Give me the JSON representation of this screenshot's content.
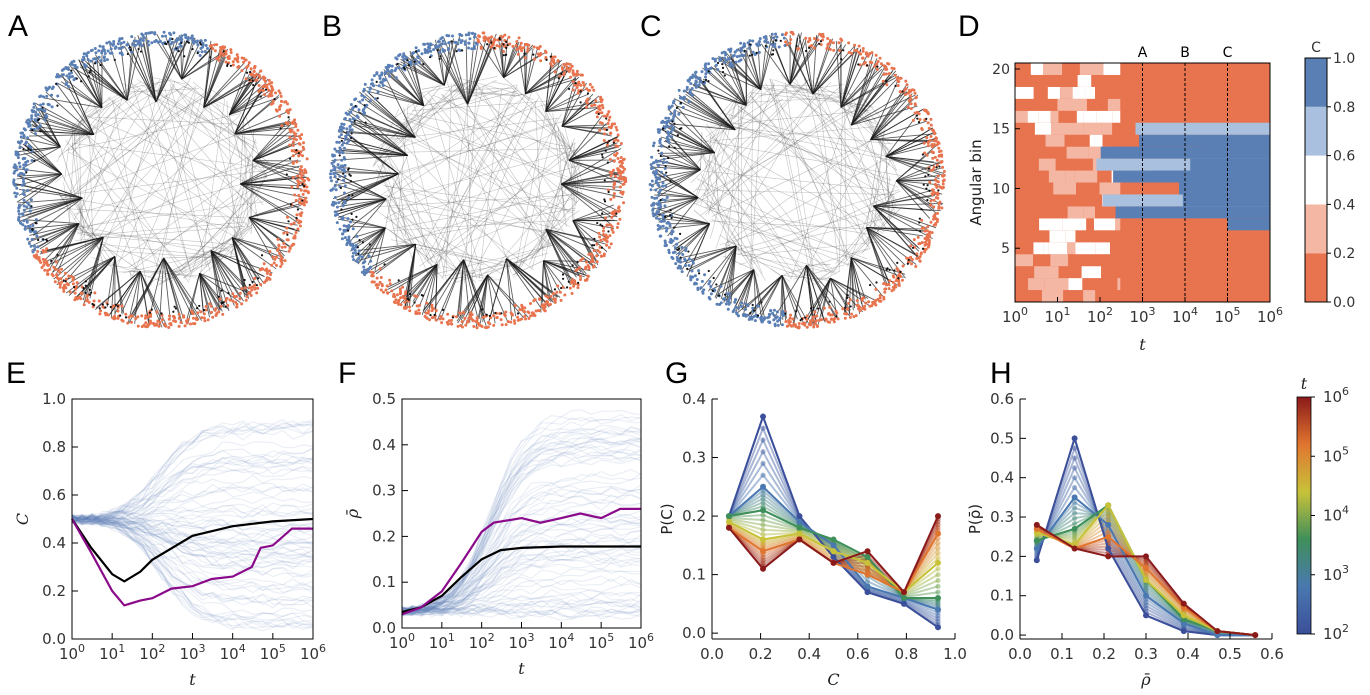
{
  "panel_labels": [
    "A",
    "B",
    "C",
    "D",
    "E",
    "F",
    "G",
    "H"
  ],
  "colors": {
    "orange": "#e8744f",
    "light_orange": "#f4b7a4",
    "blue": "#5a7fb5",
    "light_blue": "#a9c0de",
    "white": "#ffffff",
    "purple": "#8a0a8a",
    "black": "#000000",
    "edge": "#555555"
  },
  "networks": [
    {
      "label": "A",
      "blue_arc_deg": [
        150,
        290
      ]
    },
    {
      "label": "B",
      "blue_arc_deg": [
        140,
        270
      ]
    },
    {
      "label": "C",
      "blue_arc_deg": [
        95,
        265
      ]
    }
  ],
  "chart_data": [
    {
      "panel": "D",
      "type": "heatmap",
      "xlabel": "t",
      "ylabel": "Angular bin",
      "x_scale": "log",
      "x_ticks": [
        "10^0",
        "10^1",
        "10^2",
        "10^3",
        "10^4",
        "10^5",
        "10^6"
      ],
      "y_ticks": [
        5,
        10,
        15,
        20
      ],
      "xlim": [
        1,
        1000000
      ],
      "ylim": [
        0.5,
        20.5
      ],
      "markers": [
        {
          "label": "A",
          "t": 1000
        },
        {
          "label": "B",
          "t": 10000
        },
        {
          "label": "C",
          "t": 100000
        }
      ],
      "colorbar": {
        "label": "C",
        "ticks": [
          0.0,
          0.2,
          0.4,
          0.6,
          0.8,
          1.0
        ],
        "levels": [
          "#e8744f",
          "#f4b7a4",
          "#ffffff",
          "#a9c0de",
          "#5a7fb5"
        ]
      },
      "late_state": {
        "blue_bins": [
          8,
          15
        ],
        "orange_bins": [
          1,
          7
        ]
      }
    },
    {
      "panel": "E",
      "type": "line",
      "xlabel": "t",
      "ylabel": "C",
      "x_scale": "log",
      "x_ticks": [
        "10^0",
        "10^1",
        "10^2",
        "10^3",
        "10^4",
        "10^5",
        "10^6"
      ],
      "y_ticks": [
        "0.0",
        "0.2",
        "0.4",
        "0.6",
        "0.8",
        "1.0"
      ],
      "xlim": [
        1,
        1000000
      ],
      "ylim": [
        0,
        1.0
      ],
      "series": [
        {
          "color": "#000000",
          "x": [
            1,
            3,
            10,
            20,
            50,
            100,
            1000,
            10000,
            100000,
            1000000
          ],
          "values": [
            0.5,
            0.38,
            0.27,
            0.24,
            0.28,
            0.33,
            0.43,
            0.47,
            0.49,
            0.5
          ]
        },
        {
          "color": "#8a0a8a",
          "x": [
            1,
            3,
            10,
            20,
            50,
            100,
            300,
            1000,
            3000,
            10000,
            30000,
            50000,
            100000,
            300000,
            1000000
          ],
          "values": [
            0.5,
            0.36,
            0.2,
            0.14,
            0.16,
            0.17,
            0.21,
            0.22,
            0.25,
            0.26,
            0.3,
            0.38,
            0.39,
            0.46,
            0.46
          ]
        }
      ]
    },
    {
      "panel": "F",
      "type": "line",
      "xlabel": "t",
      "ylabel": "ρ̄",
      "x_scale": "log",
      "x_ticks": [
        "10^0",
        "10^1",
        "10^2",
        "10^3",
        "10^4",
        "10^5",
        "10^6"
      ],
      "y_ticks": [
        "0.0",
        "0.1",
        "0.2",
        "0.3",
        "0.4",
        "0.5"
      ],
      "xlim": [
        1,
        1000000
      ],
      "ylim": [
        0,
        0.5
      ],
      "series": [
        {
          "color": "#000000",
          "x": [
            1,
            3,
            10,
            30,
            100,
            300,
            1000,
            10000,
            100000,
            1000000
          ],
          "values": [
            0.035,
            0.045,
            0.07,
            0.11,
            0.15,
            0.17,
            0.175,
            0.178,
            0.178,
            0.178
          ]
        },
        {
          "color": "#8a0a8a",
          "x": [
            1,
            3,
            10,
            30,
            100,
            200,
            1000,
            3000,
            10000,
            30000,
            100000,
            300000,
            1000000
          ],
          "values": [
            0.03,
            0.045,
            0.08,
            0.14,
            0.21,
            0.23,
            0.24,
            0.23,
            0.24,
            0.25,
            0.24,
            0.26,
            0.26
          ]
        }
      ]
    },
    {
      "panel": "G",
      "type": "line",
      "xlabel": "C",
      "ylabel": "P(C)",
      "x_ticks": [
        "0.0",
        "0.2",
        "0.4",
        "0.6",
        "0.8",
        "1.0"
      ],
      "y_ticks": [
        "0.0",
        "0.1",
        "0.2",
        "0.3",
        "0.4"
      ],
      "xlim": [
        0,
        1.0
      ],
      "ylim": [
        -0.01,
        0.4
      ],
      "x": [
        0.07,
        0.21,
        0.36,
        0.5,
        0.64,
        0.79,
        0.93
      ],
      "series": [
        {
          "color": "#3b4f9a",
          "values": [
            0.2,
            0.37,
            0.2,
            0.13,
            0.07,
            0.05,
            0.01
          ]
        },
        {
          "color": "#4a78b0",
          "values": [
            0.2,
            0.25,
            0.19,
            0.15,
            0.08,
            0.06,
            0.04
          ]
        },
        {
          "color": "#3f8f5a",
          "values": [
            0.2,
            0.21,
            0.18,
            0.16,
            0.13,
            0.06,
            0.06
          ]
        },
        {
          "color": "#c8c23a",
          "values": [
            0.19,
            0.16,
            0.17,
            0.14,
            0.12,
            0.07,
            0.12
          ]
        },
        {
          "color": "#e0752f",
          "values": [
            0.18,
            0.14,
            0.16,
            0.12,
            0.1,
            0.07,
            0.17
          ]
        },
        {
          "color": "#8b1a1a",
          "values": [
            0.18,
            0.11,
            0.16,
            0.12,
            0.14,
            0.07,
            0.2
          ]
        }
      ]
    },
    {
      "panel": "H",
      "type": "line",
      "xlabel": "ρ̄",
      "ylabel": "P(ρ̄)",
      "x_ticks": [
        "0.0",
        "0.1",
        "0.2",
        "0.3",
        "0.4",
        "0.5",
        "0.6"
      ],
      "y_ticks": [
        "0.0",
        "0.1",
        "0.2",
        "0.3",
        "0.4",
        "0.5",
        "0.6"
      ],
      "xlim": [
        0,
        0.6
      ],
      "ylim": [
        -0.01,
        0.6
      ],
      "x": [
        0.04,
        0.13,
        0.21,
        0.3,
        0.39,
        0.47,
        0.56
      ],
      "series": [
        {
          "color": "#3b4f9a",
          "values": [
            0.19,
            0.5,
            0.22,
            0.05,
            0.01,
            0.0,
            0.0
          ]
        },
        {
          "color": "#4a78b0",
          "values": [
            0.22,
            0.35,
            0.28,
            0.1,
            0.03,
            0.0,
            0.0
          ]
        },
        {
          "color": "#3f8f5a",
          "values": [
            0.24,
            0.27,
            0.33,
            0.14,
            0.04,
            0.01,
            0.0
          ]
        },
        {
          "color": "#c8c23a",
          "values": [
            0.26,
            0.23,
            0.33,
            0.14,
            0.05,
            0.01,
            0.0
          ]
        },
        {
          "color": "#e0752f",
          "values": [
            0.27,
            0.22,
            0.25,
            0.17,
            0.07,
            0.01,
            0.0
          ]
        },
        {
          "color": "#8b1a1a",
          "values": [
            0.28,
            0.22,
            0.2,
            0.2,
            0.08,
            0.01,
            0.0
          ]
        }
      ],
      "colorbar": {
        "label": "t",
        "ticks": [
          "10^2",
          "10^3",
          "10^4",
          "10^5",
          "10^6"
        ],
        "gradient": [
          "#3b4f9a",
          "#4a78b0",
          "#3f8f5a",
          "#c8c23a",
          "#e0752f",
          "#8b1a1a"
        ]
      }
    }
  ]
}
